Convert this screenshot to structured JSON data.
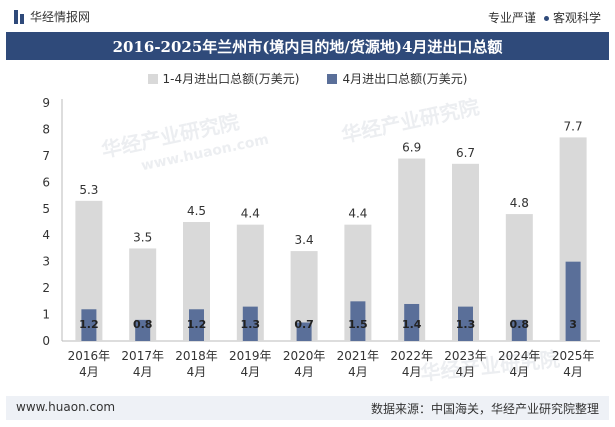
{
  "header": {
    "logo_text": "华经情报网",
    "badge1": "专业严谨",
    "badge2": "客观科学"
  },
  "title": "2016-2025年兰州市(境内目的地/货源地)4月进出口总额",
  "footer": {
    "website": "www.huaon.com",
    "source": "数据来源：中国海关，华经产业研究院整理"
  },
  "watermark": {
    "brand": "华经产业研究院",
    "url": "www.huaon.com"
  },
  "colors": {
    "series1": "#d9d9d9",
    "series2": "#5a6f99",
    "title_band": "#2f4a7a"
  },
  "chart_data": {
    "type": "bar",
    "categories": [
      "2016年\n4月",
      "2017年\n4月",
      "2018年\n4月",
      "2019年\n4月",
      "2020年\n4月",
      "2021年\n4月",
      "2022年\n4月",
      "2023年\n4月",
      "2024年\n4月",
      "2025年\n4月"
    ],
    "series": [
      {
        "name": "1-4月进出口总额(万美元)",
        "values": [
          5.3,
          3.5,
          4.5,
          4.4,
          3.4,
          4.4,
          6.9,
          6.7,
          4.8,
          7.7
        ]
      },
      {
        "name": "4月进出口总额(万美元)",
        "values": [
          1.2,
          0.8,
          1.2,
          1.3,
          0.7,
          1.5,
          1.4,
          1.3,
          0.8,
          3
        ]
      }
    ],
    "ylim": [
      0,
      9
    ],
    "yticks": [
      0,
      1,
      2,
      3,
      4,
      5,
      6,
      7,
      8,
      9
    ],
    "grid": false,
    "legend": "top-center"
  }
}
